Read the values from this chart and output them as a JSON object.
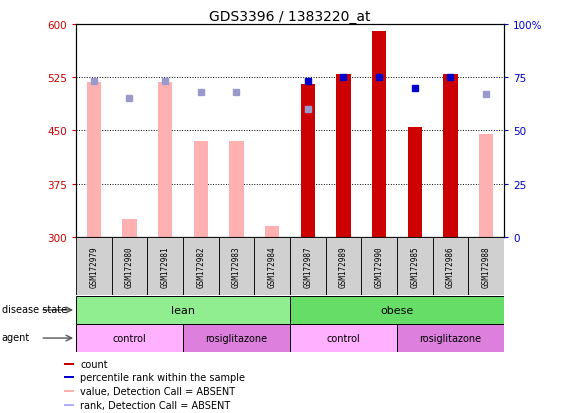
{
  "title": "GDS3396 / 1383220_at",
  "samples": [
    "GSM172979",
    "GSM172980",
    "GSM172981",
    "GSM172982",
    "GSM172983",
    "GSM172984",
    "GSM172987",
    "GSM172989",
    "GSM172990",
    "GSM172985",
    "GSM172986",
    "GSM172988"
  ],
  "count_values": [
    null,
    null,
    null,
    null,
    null,
    null,
    515,
    530,
    590,
    455,
    530,
    null
  ],
  "count_absent": [
    518,
    325,
    518,
    435,
    435,
    315,
    null,
    null,
    null,
    null,
    null,
    445
  ],
  "percentile_values": [
    null,
    null,
    null,
    null,
    null,
    null,
    73,
    75,
    75,
    70,
    75,
    null
  ],
  "percentile_absent": [
    73,
    65,
    73,
    68,
    68,
    null,
    60,
    null,
    null,
    null,
    null,
    67
  ],
  "ylim_left": [
    300,
    600
  ],
  "ylim_right": [
    0,
    100
  ],
  "yticks_left": [
    300,
    375,
    450,
    525,
    600
  ],
  "yticks_right": [
    0,
    25,
    50,
    75,
    100
  ],
  "disease_state": [
    {
      "label": "lean",
      "start": 0,
      "end": 6,
      "color": "#90EE90"
    },
    {
      "label": "obese",
      "start": 6,
      "end": 12,
      "color": "#66DD66"
    }
  ],
  "agent": [
    {
      "label": "control",
      "start": 0,
      "end": 3,
      "color": "#FFB0FF"
    },
    {
      "label": "rosiglitazone",
      "start": 3,
      "end": 6,
      "color": "#DD80DD"
    },
    {
      "label": "control",
      "start": 6,
      "end": 9,
      "color": "#FFB0FF"
    },
    {
      "label": "rosiglitazone",
      "start": 9,
      "end": 12,
      "color": "#DD80DD"
    }
  ],
  "legend_items": [
    {
      "label": "count",
      "color": "#CC0000"
    },
    {
      "label": "percentile rank within the sample",
      "color": "#0000CC"
    },
    {
      "label": "value, Detection Call = ABSENT",
      "color": "#FFB0B0"
    },
    {
      "label": "rank, Detection Call = ABSENT",
      "color": "#B0B0FF"
    }
  ],
  "bar_color_present": "#CC0000",
  "bar_color_absent": "#FFB0B0",
  "dot_color_present": "#0000CC",
  "dot_color_absent": "#9999CC",
  "right_axis_color": "#0000CC",
  "left_axis_color": "#CC0000"
}
